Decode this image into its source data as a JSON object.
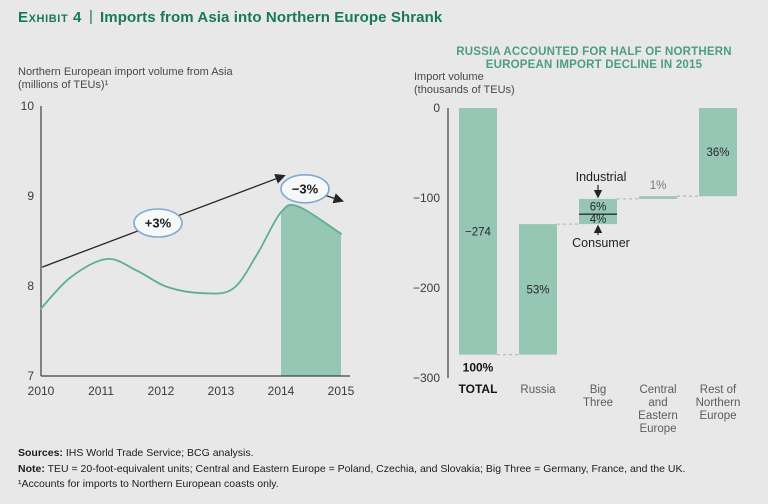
{
  "header": {
    "exhibit_label": "Exhibit 4",
    "separator": "|",
    "title": "Imports from Asia into Northern Europe Shrank"
  },
  "left_chart": {
    "axis_label_line1": "Northern European import volume from Asia",
    "axis_label_line2": "(millions of TEUs)¹"
  },
  "right_chart": {
    "title_line1": "RUSSIA ACCOUNTED FOR HALF OF NORTHERN",
    "title_line2": "EUROPEAN IMPORT DECLINE IN 2015",
    "axis_label_line1": "Import volume",
    "axis_label_line2": "(thousands of TEUs)"
  },
  "footer": {
    "sources_label": "Sources:",
    "sources_text": " IHS World Trade Service; BCG analysis.",
    "note_label": "Note:",
    "note_text": " TEU = 20-foot-equivalent units; Central and Eastern Europe = Poland, Czechia, and Slovakia; Big Three = Germany, France, and the UK.",
    "footnote": "¹Accounts for imports to Northern European coasts only."
  },
  "colors": {
    "bg": "#e8e8e9",
    "title_green": "#17795a",
    "subtitle_green": "#4d9e81",
    "area_green": "#95c7b4",
    "curve_green": "#5bb092",
    "axis": "#3f4043",
    "badge_blue": "#83aacd",
    "connector_gray": "#b9babd",
    "arrow_black": "#232427"
  },
  "chart_data": [
    {
      "type": "area",
      "title": "Northern European import volume from Asia",
      "ylabel": "millions of TEUs",
      "x": [
        2010,
        2010.5,
        2011.1,
        2011.6,
        2012.1,
        2012.7,
        2013.2,
        2013.6,
        2014,
        2014.3,
        2015
      ],
      "y": [
        7.75,
        8.1,
        8.3,
        8.17,
        7.99,
        7.92,
        7.97,
        8.35,
        8.82,
        8.88,
        8.58
      ],
      "xlim": [
        2010,
        2015
      ],
      "ylim": [
        7,
        10
      ],
      "xticks": [
        2010,
        2011,
        2012,
        2013,
        2014,
        2015
      ],
      "yticks": [
        10,
        9,
        8,
        7
      ],
      "grid": false,
      "shaded_x_range": [
        2014,
        2015
      ],
      "annotations": [
        {
          "label": "+3%",
          "arrow_from": [
            2010.02,
            8.21
          ],
          "arrow_to": [
            2014.03,
            9.22
          ],
          "badge_at": [
            2011.95,
            8.7
          ]
        },
        {
          "label": "−3%",
          "arrow_from": [
            2014.4,
            9.08
          ],
          "arrow_to": [
            2015.0,
            8.95
          ],
          "badge_at": [
            2014.4,
            9.08
          ]
        }
      ]
    },
    {
      "type": "bar",
      "subtype": "waterfall",
      "title": "RUSSIA ACCOUNTED FOR HALF OF NORTHERN EUROPEAN IMPORT DECLINE IN 2015",
      "ylabel": "thousands of TEUs",
      "ylim": [
        -300,
        0
      ],
      "ytick_values": [
        0,
        -100,
        -200,
        -300
      ],
      "ytick_labels": [
        "0",
        "−100",
        "−200",
        "−300"
      ],
      "grid": false,
      "bars": [
        {
          "name": "TOTAL",
          "label_lines": [
            "TOTAL"
          ],
          "from": 0,
          "to": -274,
          "bar_label": "−274",
          "sub_label": "100%",
          "emphasis": true
        },
        {
          "name": "Russia",
          "label_lines": [
            "Russia"
          ],
          "from": -274,
          "to": -129,
          "bar_label": "53%"
        },
        {
          "name": "Big Three",
          "label_lines": [
            "Big",
            "Three"
          ],
          "segments": [
            {
              "name": "Consumer",
              "from": -129,
              "to": -118,
              "label": "4%"
            },
            {
              "name": "Industrial",
              "from": -118,
              "to": -101,
              "label": "6%"
            }
          ],
          "annotations": [
            {
              "text": "Industrial",
              "position": "above"
            },
            {
              "text": "Consumer",
              "position": "below"
            }
          ]
        },
        {
          "name": "Central and Eastern Europe",
          "label_lines": [
            "Central",
            "and",
            "Eastern",
            "Europe"
          ],
          "from": -101,
          "to": -98,
          "bar_label": "1%",
          "label_position": "above"
        },
        {
          "name": "Rest of Northern Europe",
          "label_lines": [
            "Rest of",
            "Northern",
            "Europe"
          ],
          "from": -98,
          "to": 0,
          "bar_label": "36%"
        }
      ]
    }
  ]
}
